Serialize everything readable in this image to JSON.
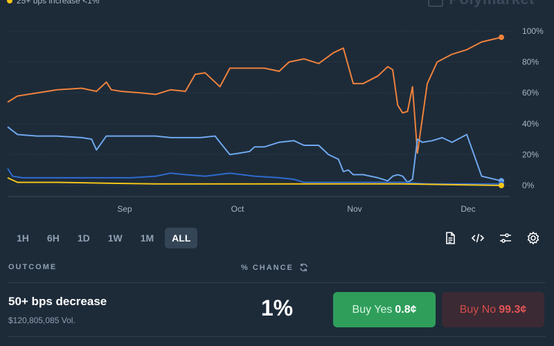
{
  "legend": {
    "text": "25+ bps increase <1%",
    "color": "#f5c518"
  },
  "brand": {
    "name": "Polymarket"
  },
  "chart_data": {
    "type": "line",
    "x_ticks": [
      "Sep",
      "Oct",
      "Nov",
      "Dec"
    ],
    "y_ticks": [
      "100%",
      "80%",
      "60%",
      "40%",
      "20%",
      "0%"
    ],
    "ylim": [
      0,
      100
    ],
    "series": [
      {
        "color": "#f0823c",
        "x": [
          0,
          2,
          6,
          10,
          15,
          18,
          20,
          21,
          23,
          27,
          30,
          33,
          36,
          38,
          40,
          43,
          45,
          47,
          52,
          55,
          57,
          60,
          63,
          66,
          68,
          70,
          72,
          75,
          77,
          78,
          79,
          80,
          81,
          82,
          83,
          85,
          87,
          90,
          93,
          96,
          100
        ],
        "y": [
          54,
          58,
          60,
          62,
          63,
          61,
          67,
          62,
          61,
          60,
          59,
          62,
          61,
          72,
          73,
          64,
          76,
          76,
          76,
          74,
          80,
          82,
          79,
          86,
          89,
          66,
          66,
          71,
          77,
          75,
          52,
          47,
          48,
          64,
          21,
          66,
          80,
          85,
          88,
          93,
          96
        ]
      },
      {
        "color": "#6fa8ee",
        "x": [
          0,
          2,
          6,
          10,
          15,
          17,
          18,
          20,
          25,
          28,
          30,
          33,
          36,
          39,
          42,
          44,
          45,
          47,
          49,
          50,
          52,
          55,
          58,
          60,
          63,
          65,
          67,
          68,
          69,
          70,
          72,
          75,
          77,
          78,
          79,
          80,
          81,
          82,
          83,
          84,
          86,
          88,
          90,
          93,
          96,
          100
        ],
        "y": [
          38,
          33,
          32,
          32,
          31,
          30,
          23,
          32,
          32,
          32,
          32,
          31,
          31,
          31,
          32,
          24,
          20,
          21,
          22,
          25,
          25,
          28,
          29,
          26,
          26,
          20,
          17,
          9,
          10,
          7,
          7,
          5,
          3,
          6,
          7,
          6,
          2,
          4,
          30,
          28,
          29,
          31,
          28,
          33,
          6,
          3
        ]
      },
      {
        "color": "#2e6bd0",
        "x": [
          0,
          1,
          3,
          8,
          15,
          20,
          25,
          30,
          33,
          36,
          40,
          45,
          50,
          55,
          58,
          60,
          63,
          67,
          70,
          75,
          80,
          85,
          90,
          95,
          100
        ],
        "y": [
          11,
          6,
          5,
          5,
          5,
          5,
          5,
          6,
          8,
          7,
          6,
          8,
          6,
          5,
          4,
          2,
          2,
          2,
          2,
          2,
          2,
          1,
          1,
          1,
          1
        ]
      },
      {
        "color": "#f5c518",
        "x": [
          0,
          2,
          5,
          10,
          20,
          30,
          40,
          50,
          60,
          70,
          80,
          90,
          100
        ],
        "y": [
          5,
          2,
          2,
          2,
          1.5,
          1,
          1,
          1,
          1,
          1,
          1,
          0.5,
          0
        ]
      }
    ]
  },
  "timeframes": [
    "1H",
    "6H",
    "1D",
    "1W",
    "1M",
    "ALL"
  ],
  "active_timeframe": "ALL",
  "table": {
    "outcome_header": "OUTCOME",
    "chance_header": "% CHANCE",
    "row": {
      "name": "50+ bps decrease",
      "volume": "$120,805,085 Vol.",
      "chance": "1%",
      "buy_yes_label": "Buy Yes",
      "buy_yes_price": "0.8¢",
      "buy_no_label": "Buy No",
      "buy_no_price": "99.3¢"
    }
  },
  "colors": {
    "background": "#1d2b39",
    "grid": "#3a4a5a",
    "yes": "#2f9e5b",
    "no": "#3b2a33",
    "no_text": "#e25555"
  }
}
